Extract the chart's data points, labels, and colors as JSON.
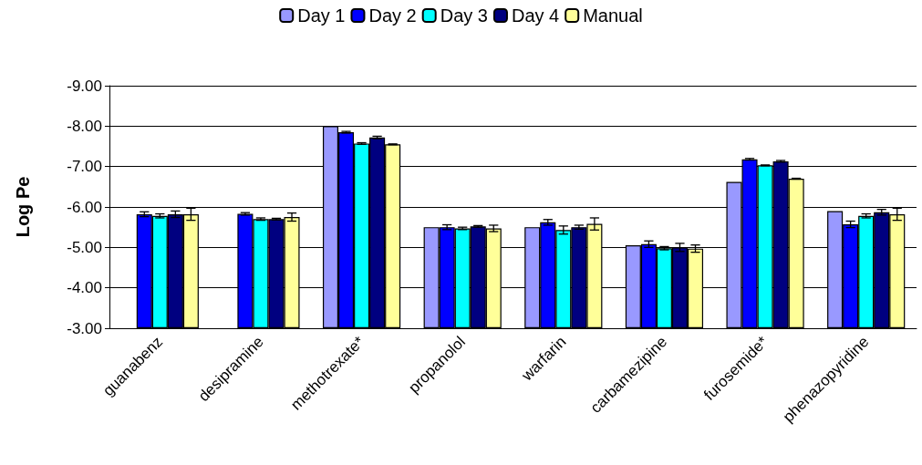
{
  "chart_data": {
    "type": "bar",
    "ylabel": "Log Pe",
    "categories": [
      "guanabenz",
      "desipramine",
      "methotrexate*",
      "propanolol",
      "warfarin",
      "carbamezipine",
      "furosemide*",
      "phenazopyridine"
    ],
    "series": [
      {
        "name": "Day 1",
        "color": "#9999ff",
        "values": [
          null,
          null,
          -8.0,
          -5.5,
          -5.5,
          -5.05,
          -6.62,
          -5.9
        ]
      },
      {
        "name": "Day 2",
        "color": "#0000ff",
        "values": [
          -5.82,
          -5.83,
          -7.85,
          -5.5,
          -5.62,
          -5.08,
          -7.18,
          -5.57
        ],
        "errors": [
          0.06,
          0.03,
          0.02,
          0.06,
          0.07,
          0.08,
          0.02,
          0.08
        ]
      },
      {
        "name": "Day 3",
        "color": "#00ffff",
        "values": [
          -5.78,
          -5.7,
          -7.57,
          -5.47,
          -5.43,
          -4.98,
          -7.03,
          -5.78
        ],
        "errors": [
          0.05,
          0.03,
          0.02,
          0.03,
          0.1,
          0.04,
          0.01,
          0.05
        ]
      },
      {
        "name": "Day 4",
        "color": "#000080",
        "values": [
          -5.82,
          -5.7,
          -7.72,
          -5.52,
          -5.5,
          -5.0,
          -7.13,
          -5.87
        ],
        "errors": [
          0.08,
          0.02,
          0.03,
          0.02,
          0.05,
          0.1,
          0.02,
          0.07
        ]
      },
      {
        "name": "Manual",
        "color": "#ffff99",
        "values": [
          -5.82,
          -5.75,
          -7.55,
          -5.47,
          -5.58,
          -4.97,
          -6.7,
          -5.82
        ],
        "errors": [
          0.15,
          0.1,
          0.01,
          0.08,
          0.15,
          0.09,
          0.01,
          0.15
        ]
      }
    ],
    "ylim": [
      -3,
      -9
    ],
    "yticks": [
      {
        "value": -3,
        "label": "-3.00"
      },
      {
        "value": -4,
        "label": "-4.00"
      },
      {
        "value": -5,
        "label": "-5.00"
      },
      {
        "value": -6,
        "label": "-6.00"
      },
      {
        "value": -7,
        "label": "-7.00"
      },
      {
        "value": -8,
        "label": "-8.00"
      },
      {
        "value": -9,
        "label": "-9.00"
      }
    ],
    "grid": "y",
    "legend": "top"
  }
}
